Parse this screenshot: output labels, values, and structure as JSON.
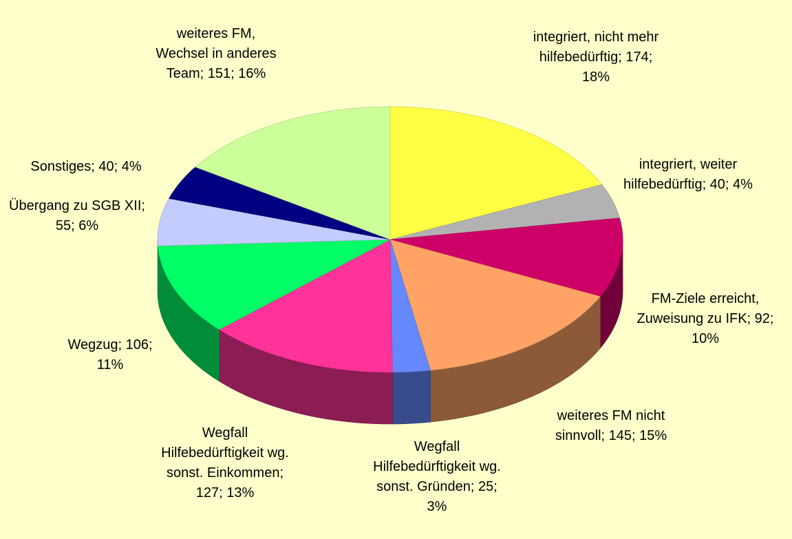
{
  "chart_data": {
    "type": "pie",
    "three_d": true,
    "values": [
      174,
      40,
      92,
      145,
      25,
      127,
      106,
      55,
      40,
      151
    ],
    "value_labels": [
      "integriert, nicht mehr hilfebedürftig; 174; 18%",
      "integriert, weiter hilfebedürftig; 40; 4%",
      "FM-Ziele erreicht, Zuweisung zu IFK; 92; 10%",
      "weiteres FM nicht sinnvoll; 145; 15%",
      "Wegfall Hilfebedürftigkeit wg. sonst. Gründen; 25; 3%",
      "Wegfall Hilfebedürftigkeit wg. sonst. Einkommen; 127; 13%",
      "Wegzug; 106; 11%",
      "Übergang zu SGB XII; 55; 6%",
      "Sonstiges; 40; 4%",
      "weiteres FM, Wechsel in anderes Team; 151; 16%"
    ],
    "colors": [
      "#ffff44",
      "#b2b2b2",
      "#cc0066",
      "#ffa366",
      "#6688ff",
      "#ff3399",
      "#00ff66",
      "#c4ccff",
      "#000080",
      "#ccff99"
    ]
  }
}
